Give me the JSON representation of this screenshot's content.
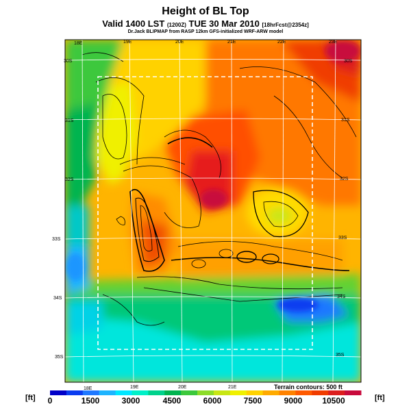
{
  "header": {
    "title": "Height of BL Top",
    "subtitle_main": "Valid 1400 LST",
    "subtitle_code": "(1200Z)",
    "subtitle_date": "TUE 30 Mar 2010",
    "subtitle_fcst": "[18hrFcst@2354z]",
    "credit": "Dr.Jack BLIPMAP from RASP 12km GFS-initialized WRF-ARW model"
  },
  "map": {
    "lon_labels_top": [
      "18E",
      "19E",
      "20E",
      "21E",
      "22E",
      "23E"
    ],
    "lon_labels_bottom": [
      "18E",
      "19E",
      "20E",
      "21E"
    ],
    "lat_labels_left": [
      "30S",
      "31S",
      "32S",
      "33S",
      "34S",
      "35S"
    ],
    "lat_labels_right": [
      "30S",
      "31S",
      "32S",
      "33S",
      "34S",
      "35S"
    ],
    "terrain_note": "Terrain contours: 500 ft"
  },
  "colorbar": {
    "unit_left": "[ft]",
    "unit_right": "[ft]",
    "tick_labels": [
      "0",
      "1500",
      "3000",
      "4500",
      "6000",
      "7500",
      "9000",
      "10500"
    ],
    "colors": [
      "#0000c8",
      "#0a3cf0",
      "#1e78ff",
      "#1eb4ff",
      "#00e6ff",
      "#00f0c8",
      "#00d28c",
      "#00b450",
      "#3cc83c",
      "#8cdc28",
      "#c8e614",
      "#f0f000",
      "#ffd200",
      "#ffaa00",
      "#ff8200",
      "#ff5a00",
      "#f03c00",
      "#dc1e1e",
      "#c80a3c"
    ]
  }
}
